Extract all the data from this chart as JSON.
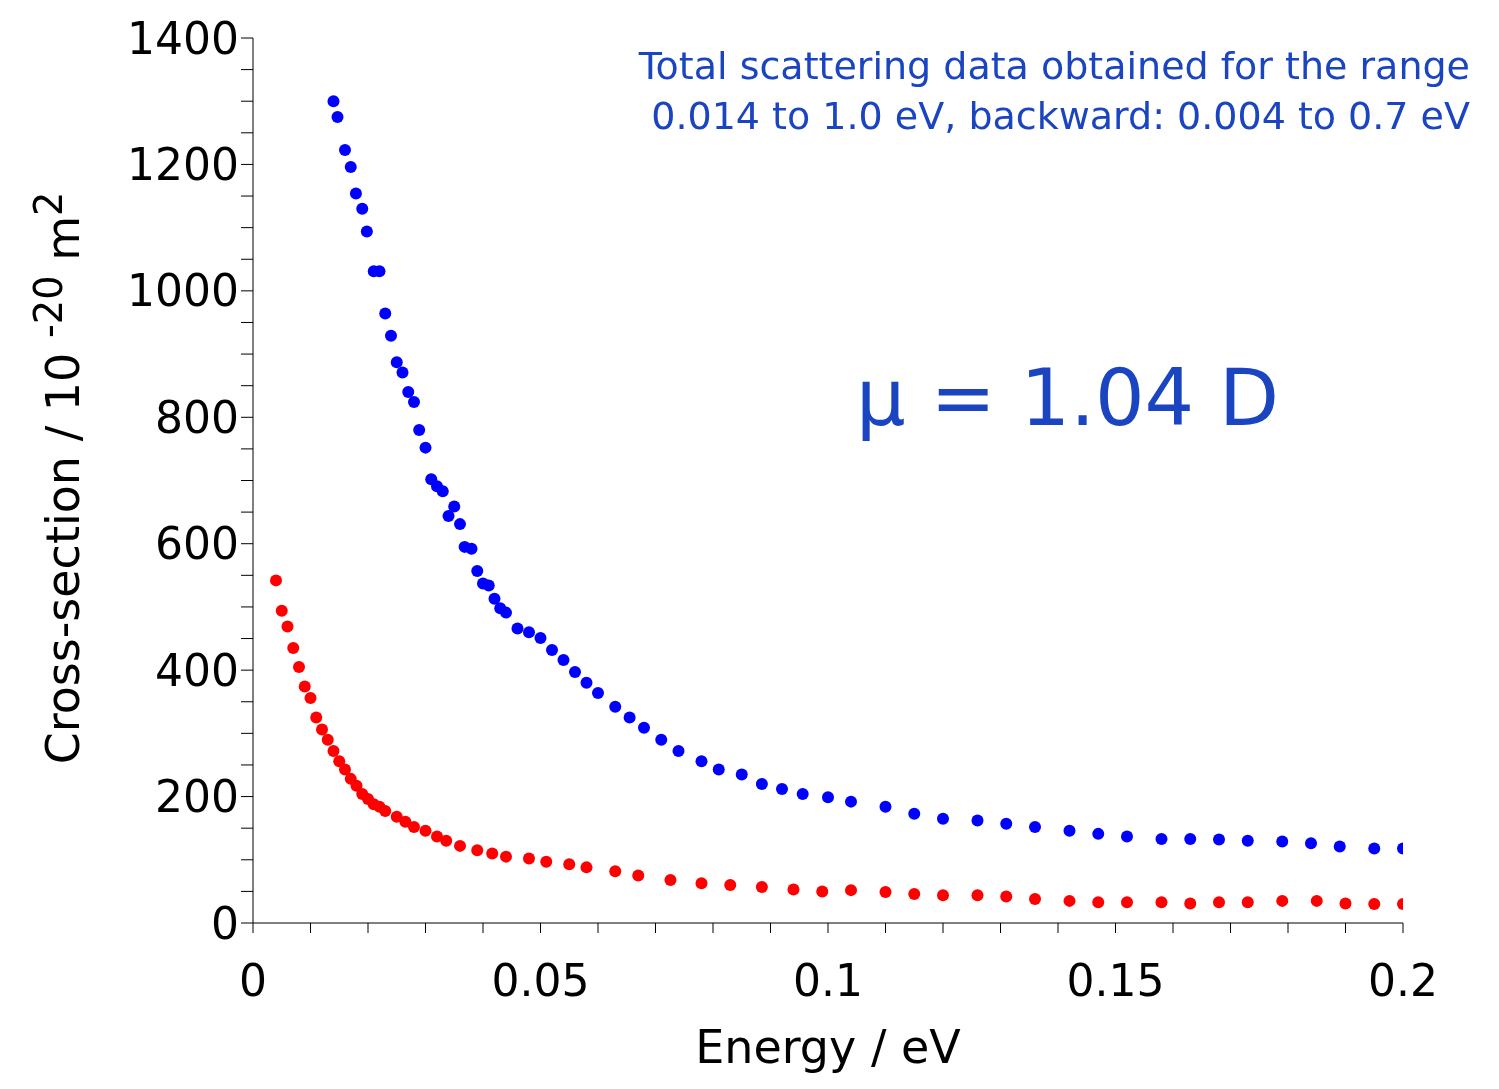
{
  "chart_data": {
    "type": "scatter",
    "xlabel": "Energy / eV",
    "ylabel": "Cross-section / 10 $^{-20}$ m$^{2}$",
    "annotations": [
      "Total scattering data obtained for the range",
      "0.014 to 1.0 eV, backward: 0.004 to 0.7 eV",
      "μ = 1.04 D"
    ],
    "xlim": [
      0,
      0.2
    ],
    "ylim": [
      0,
      1400
    ],
    "xticks": [
      0,
      {
        "value": 0.01,
        "label": null
      },
      {
        "value": 0.02,
        "label": null
      },
      {
        "value": 0.03,
        "label": null
      },
      {
        "value": 0.04,
        "label": null
      },
      0.05,
      {
        "value": 0.06,
        "label": null
      },
      {
        "value": 0.07,
        "label": null
      },
      {
        "value": 0.08,
        "label": null
      },
      {
        "value": 0.09,
        "label": null
      },
      0.1,
      {
        "value": 0.11,
        "label": null
      },
      {
        "value": 0.12,
        "label": null
      },
      {
        "value": 0.13,
        "label": null
      },
      {
        "value": 0.14,
        "label": null
      },
      0.15,
      {
        "value": 0.16,
        "label": null
      },
      {
        "value": 0.17,
        "label": null
      },
      {
        "value": 0.18,
        "label": null
      },
      {
        "value": 0.19,
        "label": null
      },
      0.2
    ],
    "yticks": [
      0,
      {
        "value": 50,
        "label": null
      },
      {
        "value": 100,
        "label": null
      },
      {
        "value": 150,
        "label": null
      },
      200,
      {
        "value": 250,
        "label": null
      },
      {
        "value": 300,
        "label": null
      },
      {
        "value": 350,
        "label": null
      },
      400,
      {
        "value": 450,
        "label": null
      },
      {
        "value": 500,
        "label": null
      },
      {
        "value": 550,
        "label": null
      },
      600,
      {
        "value": 650,
        "label": null
      },
      {
        "value": 700,
        "label": null
      },
      {
        "value": 750,
        "label": null
      },
      800,
      {
        "value": 850,
        "label": null
      },
      {
        "value": 900,
        "label": null
      },
      {
        "value": 950,
        "label": null
      },
      1000,
      {
        "value": 1050,
        "label": null
      },
      {
        "value": 1100,
        "label": null
      },
      {
        "value": 1150,
        "label": null
      },
      1200,
      {
        "value": 1250,
        "label": null
      },
      {
        "value": 1300,
        "label": null
      },
      {
        "value": 1350,
        "label": null
      },
      1400
    ],
    "grid": false,
    "legend": false,
    "marker": "circle",
    "series": [
      {
        "color": "#0000ff",
        "x": [
          0.014,
          0.0147,
          0.016,
          0.017,
          0.0179,
          0.019,
          0.0198,
          0.021,
          0.022,
          0.023,
          0.024,
          0.025,
          0.026,
          0.027,
          0.028,
          0.0289,
          0.03,
          0.031,
          0.032,
          0.033,
          0.034,
          0.035,
          0.036,
          0.0368,
          0.038,
          0.039,
          0.04,
          0.041,
          0.042,
          0.043,
          0.044,
          0.046,
          0.048,
          0.05,
          0.052,
          0.054,
          0.056,
          0.058,
          0.06,
          0.063,
          0.0655,
          0.068,
          0.071,
          0.074,
          0.078,
          0.081,
          0.085,
          0.0885,
          0.092,
          0.0956,
          0.1,
          0.104,
          0.11,
          0.115,
          0.12,
          0.126,
          0.131,
          0.136,
          0.142,
          0.147,
          0.152,
          0.158,
          0.163,
          0.168,
          0.173,
          0.179,
          0.184,
          0.189,
          0.195,
          0.2
        ],
        "values": [
          1300,
          1275,
          1223,
          1196,
          1154,
          1130,
          1094,
          1031,
          1031,
          964,
          929,
          887,
          871,
          840,
          824,
          780,
          752,
          702,
          691,
          683,
          644,
          659,
          631,
          595,
          592,
          557,
          537,
          534,
          513,
          498,
          491,
          466,
          460,
          451,
          432,
          416,
          397,
          380,
          364,
          342,
          325,
          309,
          290,
          272,
          256,
          243,
          235,
          220,
          212,
          204,
          199,
          192,
          184,
          173,
          165,
          162,
          157,
          152,
          146,
          141,
          137,
          133,
          133,
          132,
          130,
          129,
          126,
          121,
          118,
          118
        ]
      },
      {
        "color": "#ff0000",
        "x": [
          0.004,
          0.005,
          0.006,
          0.007,
          0.008,
          0.009,
          0.01,
          0.011,
          0.012,
          0.013,
          0.014,
          0.015,
          0.016,
          0.017,
          0.018,
          0.019,
          0.02,
          0.021,
          0.022,
          0.023,
          0.025,
          0.0265,
          0.028,
          0.03,
          0.032,
          0.0336,
          0.036,
          0.039,
          0.0416,
          0.044,
          0.048,
          0.051,
          0.055,
          0.058,
          0.063,
          0.067,
          0.0726,
          0.078,
          0.083,
          0.0885,
          0.094,
          0.099,
          0.104,
          0.11,
          0.115,
          0.12,
          0.126,
          0.131,
          0.136,
          0.142,
          0.147,
          0.152,
          0.158,
          0.163,
          0.168,
          0.173,
          0.179,
          0.185,
          0.19,
          0.195,
          0.2
        ],
        "values": [
          542,
          494,
          469,
          435,
          405,
          374,
          356,
          325,
          306,
          290,
          272,
          256,
          243,
          228,
          217,
          204,
          196,
          188,
          184,
          177,
          168,
          160,
          152,
          146,
          137,
          130,
          122,
          115,
          110,
          105,
          102,
          97,
          93,
          88,
          82,
          75,
          68,
          63,
          60,
          57,
          53,
          50,
          52,
          49,
          46,
          44,
          44,
          42,
          38,
          35,
          33,
          33,
          33,
          31,
          33,
          33,
          35,
          35,
          31,
          30,
          30
        ]
      }
    ]
  }
}
